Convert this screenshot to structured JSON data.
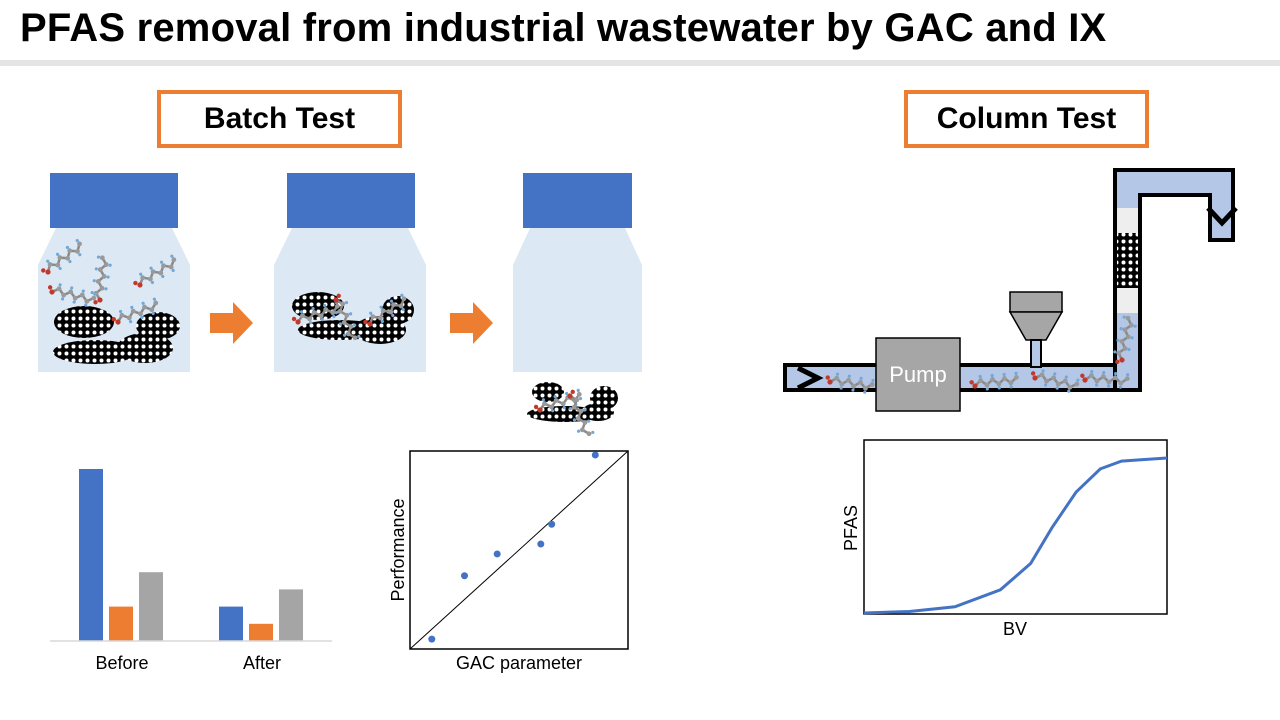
{
  "title": "PFAS removal from industrial wastewater by GAC and IX",
  "batch": {
    "label": "Batch Test"
  },
  "column": {
    "label": "Column Test",
    "pump_label": "Pump"
  },
  "colors": {
    "accent": "#ed7d31",
    "blue": "#4472c4",
    "gray": "#a5a5a5",
    "liquid": "#dde8f5",
    "pipe": "#b4c7e7"
  },
  "bar_chart": {
    "type": "bar",
    "categories": [
      "Before",
      "After"
    ],
    "series": [
      {
        "color": "#4472c4",
        "values": [
          100,
          20
        ]
      },
      {
        "color": "#ed7d31",
        "values": [
          20,
          10
        ]
      },
      {
        "color": "#a5a5a5",
        "values": [
          40,
          30
        ]
      }
    ]
  },
  "scatter_chart": {
    "type": "scatter",
    "xlabel": "GAC parameter",
    "ylabel": "Performance",
    "points": [
      [
        0.1,
        0.05
      ],
      [
        0.25,
        0.37
      ],
      [
        0.4,
        0.48
      ],
      [
        0.6,
        0.53
      ],
      [
        0.65,
        0.63
      ],
      [
        0.85,
        0.98
      ]
    ],
    "trendline": true
  },
  "breakthrough_chart": {
    "type": "line",
    "xlabel": "BV",
    "ylabel": "PFAS",
    "curve": "sigmoid breakthrough"
  },
  "chart_data": [
    {
      "type": "bar",
      "categories": [
        "Before",
        "After"
      ],
      "series": [
        {
          "values": [
            100,
            20
          ]
        },
        {
          "values": [
            20,
            10
          ]
        },
        {
          "values": [
            40,
            30
          ]
        }
      ]
    },
    {
      "type": "scatter",
      "xlabel": "GAC parameter",
      "ylabel": "Performance",
      "x": [
        0.1,
        0.25,
        0.4,
        0.6,
        0.65,
        0.85
      ],
      "y": [
        0.05,
        0.37,
        0.48,
        0.53,
        0.63,
        0.98
      ],
      "trendline": "linear"
    },
    {
      "type": "line",
      "xlabel": "BV",
      "ylabel": "PFAS",
      "x": [
        0,
        0.15,
        0.3,
        0.45,
        0.55,
        0.62,
        0.7,
        0.78,
        0.85,
        0.92,
        1.0
      ],
      "y": [
        0,
        0.01,
        0.04,
        0.15,
        0.32,
        0.55,
        0.78,
        0.93,
        0.98,
        0.99,
        1.0
      ]
    }
  ]
}
